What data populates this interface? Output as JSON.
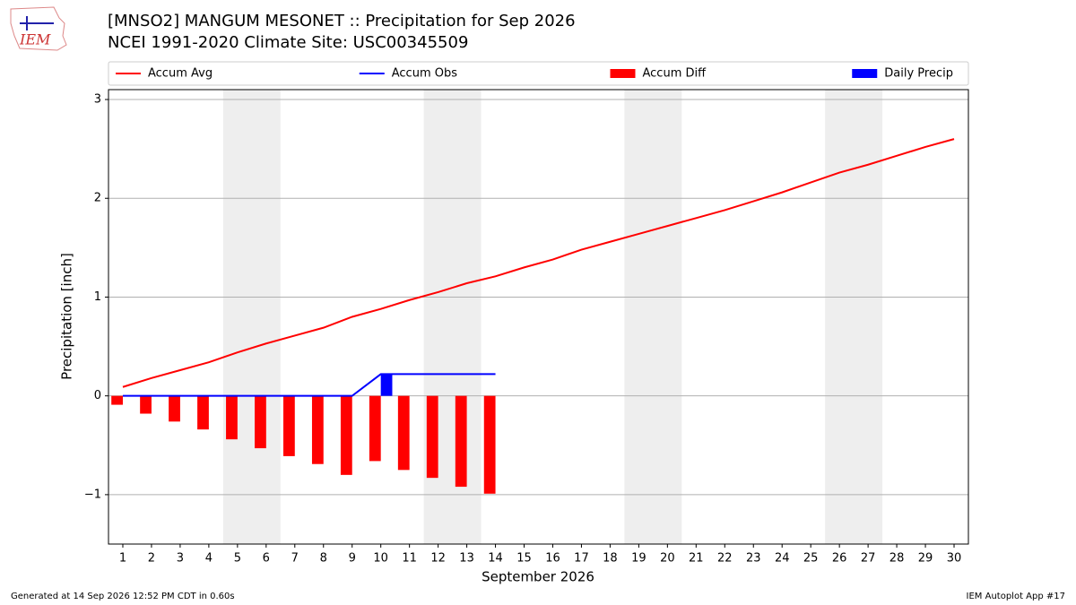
{
  "chart_data": {
    "type": "line",
    "title": "[MNSO2] MANGUM MESONET :: Precipitation for Sep 2026",
    "subtitle": "NCEI 1991-2020 Climate Site: USC00345509",
    "logo_text": "IEM",
    "x_label": "September 2026",
    "y_label": "Precipitation [inch]",
    "footer_left": "Generated at 14 Sep 2026 12:52 PM CDT in 0.60s",
    "footer_right": "IEM Autoplot App #17",
    "x": [
      1,
      2,
      3,
      4,
      5,
      6,
      7,
      8,
      9,
      10,
      11,
      12,
      13,
      14,
      15,
      16,
      17,
      18,
      19,
      20,
      21,
      22,
      23,
      24,
      25,
      26,
      27,
      28,
      29,
      30
    ],
    "series": [
      {
        "name": "Accum Avg",
        "type": "line",
        "color": "#ff0000",
        "values": [
          0.09,
          0.18,
          0.26,
          0.34,
          0.44,
          0.53,
          0.61,
          0.69,
          0.8,
          0.88,
          0.97,
          1.05,
          1.14,
          1.21,
          1.3,
          1.38,
          1.48,
          1.56,
          1.64,
          1.72,
          1.8,
          1.88,
          1.97,
          2.06,
          2.16,
          2.26,
          2.34,
          2.43,
          2.52,
          2.6
        ]
      },
      {
        "name": "Accum Obs",
        "type": "line",
        "color": "#0000ff",
        "values": [
          0,
          0,
          0,
          0,
          0,
          0,
          0,
          0,
          0,
          0.22,
          0.22,
          0.22,
          0.22,
          0.22,
          null,
          null,
          null,
          null,
          null,
          null,
          null,
          null,
          null,
          null,
          null,
          null,
          null,
          null,
          null,
          null
        ]
      },
      {
        "name": "Accum Diff",
        "type": "bar",
        "color": "#ff0000",
        "values": [
          -0.09,
          -0.18,
          -0.26,
          -0.34,
          -0.44,
          -0.53,
          -0.61,
          -0.69,
          -0.8,
          -0.66,
          -0.75,
          -0.83,
          -0.92,
          -0.99,
          null,
          null,
          null,
          null,
          null,
          null,
          null,
          null,
          null,
          null,
          null,
          null,
          null,
          null,
          null,
          null
        ]
      },
      {
        "name": "Daily Precip",
        "type": "bar",
        "color": "#0000ff",
        "values": [
          0,
          0,
          0,
          0,
          0,
          0,
          0,
          0,
          0,
          0.22,
          0,
          0,
          0,
          0,
          null,
          null,
          null,
          null,
          null,
          null,
          null,
          null,
          null,
          null,
          null,
          null,
          null,
          null,
          null,
          null
        ]
      }
    ],
    "shaded_spans": [
      [
        4.5,
        6.5
      ],
      [
        11.5,
        13.5
      ],
      [
        18.5,
        20.5
      ],
      [
        25.5,
        27.5
      ]
    ],
    "shade_color": "#eeeeee",
    "xlim": [
      0.5,
      30.5
    ],
    "xticks": [
      1,
      2,
      3,
      4,
      5,
      6,
      7,
      8,
      9,
      10,
      11,
      12,
      13,
      14,
      15,
      16,
      17,
      18,
      19,
      20,
      21,
      22,
      23,
      24,
      25,
      26,
      27,
      28,
      29,
      30
    ],
    "ylim": [
      -1.5,
      3.1
    ],
    "yticks": [
      {
        "value": -1,
        "label": "−1"
      },
      0,
      1,
      2,
      3
    ],
    "grid": true,
    "legend": "top"
  }
}
